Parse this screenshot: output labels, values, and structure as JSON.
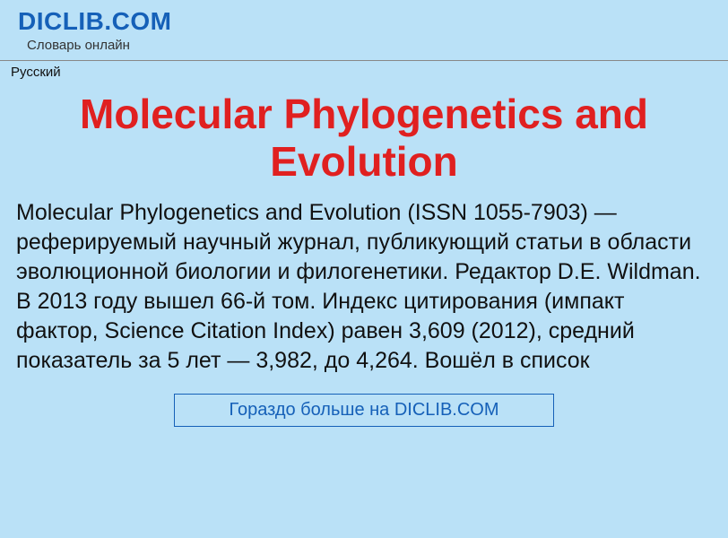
{
  "header": {
    "site_name": "DICLIB.COM",
    "tagline": "Словарь онлайн"
  },
  "language": "Русский",
  "article": {
    "title": "Molecular Phylogenetics and Evolution",
    "body": "Molecular Phylogenetics and Evolution (ISSN 1055-7903) — реферируемый научный журнал, публикующий статьи в области эволюционной биологии и филогенетики. Редактор D.E. Wildman. В 2013 году вышел 66-й том. Индекс цитирования (импакт фактор, Science Citation Index) равен 3,609 (2012), средний показатель за 5 лет — 3,982, до 4,264. Вошёл в список"
  },
  "more_link": "Гораздо больше на DICLIB.COM",
  "colors": {
    "background": "#bae1f7",
    "brand_blue": "#1560b8",
    "title_red": "#e02020",
    "text": "#111111",
    "divider": "#888888"
  }
}
